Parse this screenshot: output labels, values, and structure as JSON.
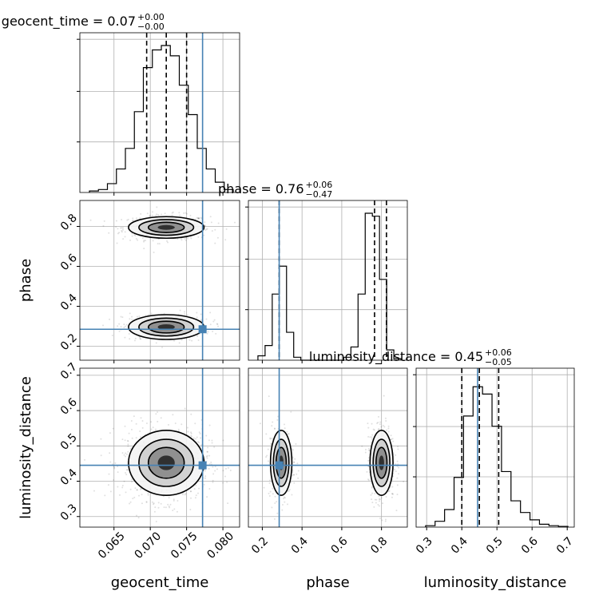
{
  "chart_data": {
    "type": "corner",
    "parameters": [
      {
        "name": "geocent_time",
        "title_name": "geocent_time",
        "median": "0.07",
        "plus": "+0.00",
        "minus": "−0.00",
        "quantiles": [
          0.0695,
          0.0722,
          0.075
        ],
        "truth": 0.0772,
        "range": [
          0.0603,
          0.0823
        ],
        "ticks": [
          0.065,
          0.07,
          0.075,
          0.08
        ],
        "tick_labels": [
          "0.065",
          "0.070",
          "0.075",
          "0.080"
        ]
      },
      {
        "name": "phase",
        "title_name": "phase",
        "median": "0.76",
        "plus": "+0.06",
        "minus": "−0.47",
        "quantiles": [
          0.285,
          0.765,
          0.825
        ],
        "truth": 0.285,
        "range": [
          0.13,
          0.93
        ],
        "ticks": [
          0.2,
          0.4,
          0.6,
          0.8
        ],
        "tick_labels": [
          "0.2",
          "0.4",
          "0.6",
          "0.8"
        ]
      },
      {
        "name": "luminosity_distance",
        "title_name": "luminosity_distance",
        "median": "0.45",
        "plus": "+0.06",
        "minus": "−0.05",
        "quantiles": [
          0.4,
          0.45,
          0.505
        ],
        "truth": 0.445,
        "range": [
          0.27,
          0.72
        ],
        "ticks": [
          0.3,
          0.4,
          0.5,
          0.6,
          0.7
        ],
        "tick_labels": [
          "0.3",
          "0.4",
          "0.5",
          "0.6",
          "0.7"
        ]
      }
    ],
    "histograms": {
      "geocent_time": [
        0.01,
        0.02,
        0.06,
        0.16,
        0.3,
        0.55,
        0.85,
        0.97,
        1.0,
        0.93,
        0.73,
        0.53,
        0.3,
        0.16,
        0.07,
        0.02
      ],
      "phase": [
        0.03,
        0.1,
        0.45,
        0.64,
        0.19,
        0.02,
        0.0,
        0.0,
        0.0,
        0.0,
        0.0,
        0.0,
        0.02,
        0.09,
        0.45,
        1.0,
        0.98,
        0.55,
        0.07,
        0.01
      ],
      "luminosity_distance": [
        0.01,
        0.04,
        0.12,
        0.34,
        0.76,
        0.96,
        0.91,
        0.69,
        0.38,
        0.18,
        0.1,
        0.05,
        0.02,
        0.01,
        0.005
      ]
    },
    "blobs": [
      {
        "x": "geocent_time",
        "y": "phase",
        "modes": [
          {
            "cx": 0.0722,
            "cy": 0.795,
            "sx": 0.0026,
            "sy": 0.027,
            "w": 0.6
          },
          {
            "cx": 0.0722,
            "cy": 0.296,
            "sx": 0.0026,
            "sy": 0.031,
            "w": 0.4
          }
        ]
      },
      {
        "x": "geocent_time",
        "y": "luminosity_distance",
        "modes": [
          {
            "cx": 0.0722,
            "cy": 0.452,
            "sx": 0.0026,
            "sy": 0.046,
            "w": 1.0
          }
        ]
      },
      {
        "x": "phase",
        "y": "luminosity_distance",
        "modes": [
          {
            "cx": 0.295,
            "cy": 0.452,
            "sx": 0.027,
            "sy": 0.046,
            "w": 0.4
          },
          {
            "cx": 0.8,
            "cy": 0.452,
            "sx": 0.029,
            "sy": 0.046,
            "w": 0.6
          }
        ]
      }
    ],
    "truth_color": "#4682b4",
    "grid": true
  }
}
